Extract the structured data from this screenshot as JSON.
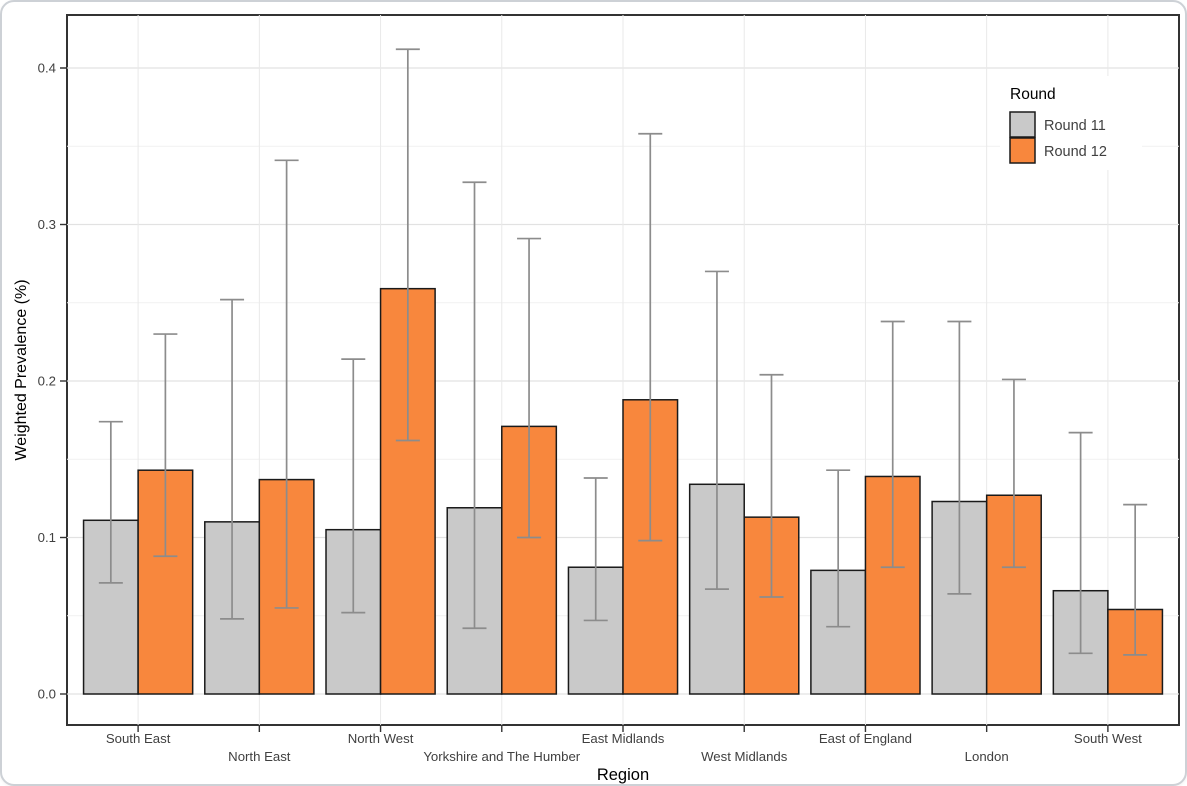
{
  "chart_data": {
    "type": "bar",
    "title": "",
    "xlabel": "Region",
    "ylabel": "Weighted Prevalence (%)",
    "categories": [
      "South East",
      "North East",
      "North West",
      "Yorkshire and The Humber",
      "East Midlands",
      "West Midlands",
      "East of England",
      "London",
      "South West"
    ],
    "series": [
      {
        "name": "Round 11",
        "color": "#C9C9C9",
        "values": [
          0.111,
          0.11,
          0.105,
          0.119,
          0.081,
          0.134,
          0.079,
          0.123,
          0.066
        ],
        "ci_low": [
          0.071,
          0.048,
          0.052,
          0.042,
          0.047,
          0.067,
          0.043,
          0.064,
          0.026
        ],
        "ci_high": [
          0.174,
          0.252,
          0.214,
          0.327,
          0.138,
          0.27,
          0.143,
          0.238,
          0.167
        ]
      },
      {
        "name": "Round 12",
        "color": "#F8873D",
        "values": [
          0.143,
          0.137,
          0.259,
          0.171,
          0.188,
          0.113,
          0.139,
          0.127,
          0.054
        ],
        "ci_low": [
          0.088,
          0.055,
          0.162,
          0.1,
          0.098,
          0.062,
          0.081,
          0.081,
          0.025
        ],
        "ci_high": [
          0.23,
          0.341,
          0.412,
          0.291,
          0.358,
          0.204,
          0.238,
          0.201,
          0.121
        ]
      }
    ],
    "y_ticks": [
      "0.0",
      "0.1",
      "0.2",
      "0.3",
      "0.4"
    ],
    "y_tick_values": [
      0.0,
      0.1,
      0.2,
      0.3,
      0.4
    ],
    "y_minor_tick_values": [
      0.05,
      0.15,
      0.25,
      0.35
    ],
    "ylim": [
      -0.02,
      0.434
    ],
    "legend": {
      "title": "Round",
      "entries": [
        "Round 11",
        "Round 12"
      ],
      "position": "top-right-inside"
    },
    "grid": "major+minor",
    "error_bars": true,
    "colors": {
      "bar_round11": "#C9C9C9",
      "bar_round12": "#F8873D",
      "bar_border": "#1A1A1A",
      "error_bar": "#8C8C8C",
      "panel_border": "#333333",
      "grid_major": "#E2E2E2",
      "grid_minor": "#F1F1F1",
      "tick_label": "#404040"
    }
  }
}
